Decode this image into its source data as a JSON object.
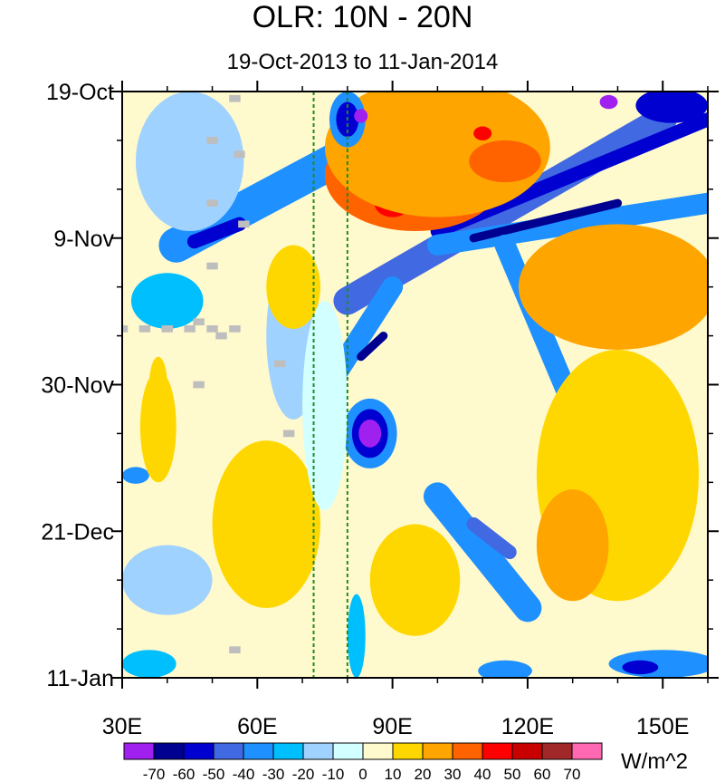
{
  "chart_data": {
    "type": "heatmap",
    "title": "OLR: 10N - 20N",
    "subtitle": "19-Oct-2013 to 11-Jan-2014",
    "xlabel": "",
    "ylabel": "",
    "x_range_degE": [
      30,
      160
    ],
    "x_ticks": [
      {
        "value": 30,
        "label": "30E"
      },
      {
        "value": 60,
        "label": "60E"
      },
      {
        "value": 90,
        "label": "90E"
      },
      {
        "value": 120,
        "label": "120E"
      },
      {
        "value": 150,
        "label": "150E"
      }
    ],
    "y_range_days_since_19oct": [
      0,
      84
    ],
    "y_ticks": [
      {
        "value": 0,
        "label": "19-Oct"
      },
      {
        "value": 21,
        "label": "9-Nov"
      },
      {
        "value": 42,
        "label": "30-Nov"
      },
      {
        "value": 63,
        "label": "21-Dec"
      },
      {
        "value": 84,
        "label": "11-Jan"
      }
    ],
    "reference_lines_degE": [
      72.5,
      80
    ],
    "reference_line_color": "#228b22",
    "missing_color": "#bebebe",
    "colorbar": {
      "unit": "W/m^2",
      "levels": [
        "-70",
        "-60",
        "-50",
        "-40",
        "-30",
        "-20",
        "-10",
        "0",
        "10",
        "20",
        "30",
        "40",
        "50",
        "60",
        "70"
      ],
      "colors": [
        "#a020f0",
        "#000090",
        "#0000d0",
        "#4169e1",
        "#1e90ff",
        "#00bfff",
        "#a0d2ff",
        "#d2ffff",
        "#fffacd",
        "#ffd700",
        "#ffa500",
        "#ff6300",
        "#ff0000",
        "#c80000",
        "#a02828",
        "#ff69b4"
      ]
    },
    "background_class": 8,
    "anomaly_features": [
      {
        "shape": "band",
        "cls": 4,
        "x1": 42,
        "y1": 22,
        "x2": 100,
        "y2": 2,
        "w": 5
      },
      {
        "shape": "band",
        "cls": 2,
        "x1": 46,
        "y1": 21.5,
        "x2": 56,
        "y2": 19,
        "w": 2
      },
      {
        "shape": "band",
        "cls": 3,
        "x1": 80,
        "y1": 30,
        "x2": 150,
        "y2": 4,
        "w": 4
      },
      {
        "shape": "band",
        "cls": 2,
        "x1": 100,
        "y1": 20,
        "x2": 160,
        "y2": 4,
        "w": 2
      },
      {
        "shape": "band",
        "cls": 4,
        "x1": 100,
        "y1": 22,
        "x2": 160,
        "y2": 16,
        "w": 3
      },
      {
        "shape": "band",
        "cls": 1,
        "x1": 108,
        "y1": 21,
        "x2": 140,
        "y2": 16,
        "w": 1.2
      },
      {
        "shape": "band",
        "cls": 4,
        "x1": 78,
        "y1": 40,
        "x2": 90,
        "y2": 28,
        "w": 3
      },
      {
        "shape": "band",
        "cls": 1,
        "x1": 83,
        "y1": 38,
        "x2": 88,
        "y2": 35,
        "w": 1.2
      },
      {
        "shape": "band",
        "cls": 4,
        "x1": 100,
        "y1": 58,
        "x2": 120,
        "y2": 74,
        "w": 4
      },
      {
        "shape": "band",
        "cls": 3,
        "x1": 108,
        "y1": 62,
        "x2": 116,
        "y2": 66,
        "w": 2
      },
      {
        "shape": "band",
        "cls": 4,
        "x1": 115,
        "y1": 22,
        "x2": 130,
        "y2": 45,
        "w": 3
      },
      {
        "shape": "blob",
        "cls": 11,
        "cx": 95,
        "cy": 12,
        "rx": 20,
        "ry": 8
      },
      {
        "shape": "blob",
        "cls": 12,
        "cx": 90,
        "cy": 16,
        "rx": 4,
        "ry": 2
      },
      {
        "shape": "blob",
        "cls": 10,
        "cx": 100,
        "cy": 8,
        "rx": 25,
        "ry": 10
      },
      {
        "shape": "blob",
        "cls": 11,
        "cx": 145,
        "cy": 26,
        "rx": 16,
        "ry": 5
      },
      {
        "shape": "blob",
        "cls": 12,
        "cx": 124,
        "cy": 28,
        "rx": 5,
        "ry": 2
      },
      {
        "shape": "blob",
        "cls": 10,
        "cx": 140,
        "cy": 28,
        "rx": 22,
        "ry": 9
      },
      {
        "shape": "blob",
        "cls": 11,
        "cx": 115,
        "cy": 10,
        "rx": 8,
        "ry": 3
      },
      {
        "shape": "blob",
        "cls": 12,
        "cx": 110,
        "cy": 6,
        "rx": 2,
        "ry": 1
      },
      {
        "shape": "blob",
        "cls": 4,
        "cx": 80,
        "cy": 4,
        "rx": 4,
        "ry": 4
      },
      {
        "shape": "blob",
        "cls": 2,
        "cx": 80,
        "cy": 4,
        "rx": 2.5,
        "ry": 2.5
      },
      {
        "shape": "blob",
        "cls": 0,
        "cx": 83,
        "cy": 3.5,
        "rx": 1.5,
        "ry": 1
      },
      {
        "shape": "blob",
        "cls": 2,
        "cx": 152,
        "cy": 2,
        "rx": 8,
        "ry": 2.5
      },
      {
        "shape": "blob",
        "cls": 0,
        "cx": 138,
        "cy": 1.5,
        "rx": 2,
        "ry": 1
      },
      {
        "shape": "blob",
        "cls": 4,
        "cx": 85,
        "cy": 49,
        "rx": 6,
        "ry": 5
      },
      {
        "shape": "blob",
        "cls": 2,
        "cx": 85,
        "cy": 49,
        "rx": 4,
        "ry": 3.5
      },
      {
        "shape": "blob",
        "cls": 0,
        "cx": 85,
        "cy": 49,
        "rx": 2.5,
        "ry": 2
      },
      {
        "shape": "blob",
        "cls": 4,
        "cx": 33,
        "cy": 55,
        "rx": 3,
        "ry": 1.2
      },
      {
        "shape": "blob",
        "cls": 6,
        "cx": 40,
        "cy": 70,
        "rx": 10,
        "ry": 5
      },
      {
        "shape": "blob",
        "cls": 5,
        "cx": 36,
        "cy": 82,
        "rx": 6,
        "ry": 2
      },
      {
        "shape": "blob",
        "cls": 9,
        "cx": 62,
        "cy": 62,
        "rx": 12,
        "ry": 12
      },
      {
        "shape": "blob",
        "cls": 9,
        "cx": 38,
        "cy": 48,
        "rx": 4,
        "ry": 8
      },
      {
        "shape": "blob",
        "cls": 9,
        "cx": 140,
        "cy": 55,
        "rx": 18,
        "ry": 18
      },
      {
        "shape": "blob",
        "cls": 10,
        "cx": 130,
        "cy": 65,
        "rx": 8,
        "ry": 8
      },
      {
        "shape": "blob",
        "cls": 9,
        "cx": 95,
        "cy": 70,
        "rx": 10,
        "ry": 8
      },
      {
        "shape": "blob",
        "cls": 4,
        "cx": 150,
        "cy": 82,
        "rx": 12,
        "ry": 2
      },
      {
        "shape": "blob",
        "cls": 2,
        "cx": 145,
        "cy": 82.5,
        "rx": 4,
        "ry": 1
      },
      {
        "shape": "blob",
        "cls": 4,
        "cx": 115,
        "cy": 83,
        "rx": 6,
        "ry": 1.5
      },
      {
        "shape": "blob",
        "cls": 5,
        "cx": 82,
        "cy": 78,
        "rx": 2,
        "ry": 6
      },
      {
        "shape": "blob",
        "cls": 6,
        "cx": 68,
        "cy": 35,
        "rx": 6,
        "ry": 12
      },
      {
        "shape": "blob",
        "cls": 7,
        "cx": 75,
        "cy": 45,
        "rx": 5,
        "ry": 15
      },
      {
        "shape": "blob",
        "cls": 6,
        "cx": 45,
        "cy": 10,
        "rx": 12,
        "ry": 10
      },
      {
        "shape": "blob",
        "cls": 5,
        "cx": 40,
        "cy": 30,
        "rx": 8,
        "ry": 4
      },
      {
        "shape": "blob",
        "cls": 9,
        "cx": 68,
        "cy": 28,
        "rx": 6,
        "ry": 6
      },
      {
        "shape": "blob",
        "cls": 9,
        "cx": 38,
        "cy": 42,
        "rx": 2,
        "ry": 4
      }
    ],
    "missing_cells": [
      {
        "x": 55,
        "y": 1
      },
      {
        "x": 50,
        "y": 7
      },
      {
        "x": 56,
        "y": 9
      },
      {
        "x": 50,
        "y": 16
      },
      {
        "x": 57,
        "y": 19
      },
      {
        "x": 50,
        "y": 25
      },
      {
        "x": 30,
        "y": 34
      },
      {
        "x": 35,
        "y": 34
      },
      {
        "x": 40,
        "y": 34
      },
      {
        "x": 45,
        "y": 34
      },
      {
        "x": 50,
        "y": 34
      },
      {
        "x": 55,
        "y": 34
      },
      {
        "x": 47,
        "y": 33
      },
      {
        "x": 52,
        "y": 35
      },
      {
        "x": 65,
        "y": 39
      },
      {
        "x": 47,
        "y": 42
      },
      {
        "x": 67,
        "y": 49
      },
      {
        "x": 55,
        "y": 80
      }
    ]
  }
}
